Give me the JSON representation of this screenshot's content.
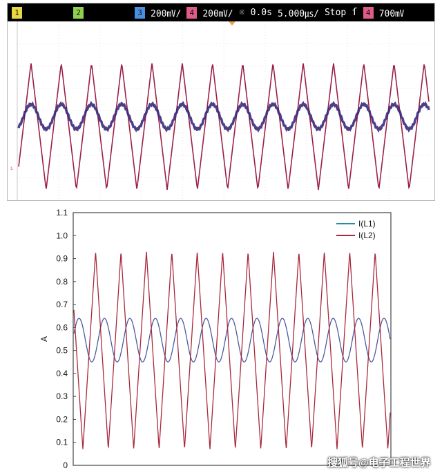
{
  "scope": {
    "channels": [
      {
        "label": "1",
        "color": "#e8d844"
      },
      {
        "label": "2",
        "color": "#8fd14f"
      },
      {
        "label": "3",
        "color": "#4a90e2",
        "scale": "200㎷/"
      },
      {
        "label": "4",
        "color": "#e05a8a",
        "scale": "200㎷/"
      }
    ],
    "brightness_icon": "sun-icon",
    "time_offset": "0.0s",
    "time_scale": "5.000㎲/",
    "run_state": "Stop",
    "trigger_icon": "trigger-edge-icon",
    "trigger_channel": {
      "label": "4",
      "color": "#e05a8a"
    },
    "trigger_level": "700㎷",
    "ground_marker": "₁",
    "trace_colors": {
      "sine": "#3a2a7a",
      "triangle": "#9b1f4a"
    }
  },
  "chart_data": {
    "type": "line",
    "title": "",
    "xlabel": "",
    "ylabel": "A",
    "ylim": [
      0,
      1.1
    ],
    "yticks": [
      "0",
      "0.1",
      "0.2",
      "0.3",
      "0.4",
      "0.5",
      "0.6",
      "0.7",
      "0.8",
      "0.9",
      "1.0",
      "1.1"
    ],
    "x_period_count": 12.5,
    "series": [
      {
        "name": "I(L1)",
        "color": "#4a5aa0",
        "legend_color": "#2a8aa8",
        "shape": "sine",
        "min": 0.45,
        "max": 0.64,
        "periods": 12.5
      },
      {
        "name": "I(L2)",
        "color": "#a8283c",
        "legend_color": "#a8283c",
        "shape": "triangle",
        "min": 0.07,
        "max": 0.93,
        "periods": 12.5
      }
    ],
    "legend_position": "top-right"
  },
  "watermark": "搜狐号@电子工程世界"
}
